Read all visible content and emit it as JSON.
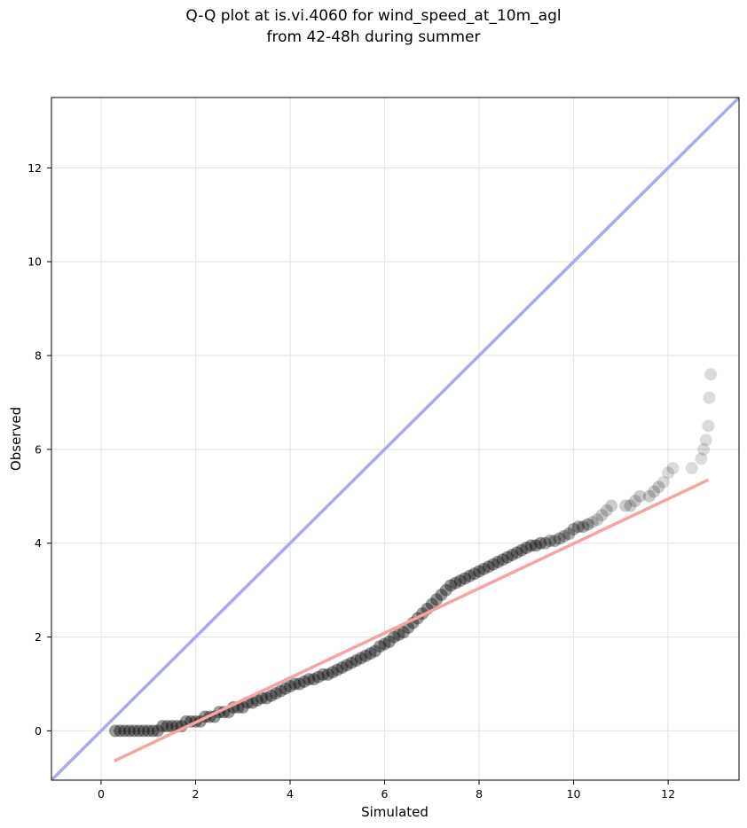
{
  "chart_data": {
    "type": "scatter",
    "title": "Q-Q plot at is.vi.4060 for wind_speed_at_10m_agl",
    "subtitle": "from 42-48h during summer",
    "xlabel": "Simulated",
    "ylabel": "Observed",
    "xlim": [
      -1.05,
      13.5
    ],
    "ylim": [
      -1.05,
      13.5
    ],
    "xticks": [
      0,
      2,
      4,
      6,
      8,
      10,
      12
    ],
    "yticks": [
      0,
      2,
      4,
      6,
      8,
      10,
      12
    ],
    "grid": true,
    "identity_line": {
      "from": [
        -1.05,
        -1.05
      ],
      "to": [
        13.5,
        13.5
      ],
      "color": "#a6abf0"
    },
    "fit_line": {
      "from": [
        0.28,
        -0.64
      ],
      "to": [
        12.85,
        5.35
      ],
      "color": "#f5a3a3"
    },
    "point_color": "#000000",
    "series": [
      {
        "points": [
          [
            0.3,
            0.0
          ],
          [
            0.4,
            0.0
          ],
          [
            0.5,
            0.0
          ],
          [
            0.6,
            0.0
          ],
          [
            0.7,
            0.0
          ],
          [
            0.8,
            0.0
          ],
          [
            0.9,
            0.0
          ],
          [
            1.0,
            0.0
          ],
          [
            1.1,
            0.0
          ],
          [
            1.2,
            0.0
          ],
          [
            1.3,
            0.1
          ],
          [
            1.4,
            0.1
          ],
          [
            1.5,
            0.1
          ],
          [
            1.6,
            0.1
          ],
          [
            1.7,
            0.1
          ],
          [
            1.8,
            0.2
          ],
          [
            1.9,
            0.2
          ],
          [
            2.0,
            0.2
          ],
          [
            2.1,
            0.2
          ],
          [
            2.2,
            0.3
          ],
          [
            2.3,
            0.3
          ],
          [
            2.4,
            0.3
          ],
          [
            2.5,
            0.4
          ],
          [
            2.6,
            0.4
          ],
          [
            2.7,
            0.4
          ],
          [
            2.8,
            0.5
          ],
          [
            2.9,
            0.5
          ],
          [
            3.0,
            0.5
          ],
          [
            3.1,
            0.6
          ],
          [
            3.2,
            0.6
          ],
          [
            3.3,
            0.65
          ],
          [
            3.4,
            0.7
          ],
          [
            3.5,
            0.7
          ],
          [
            3.6,
            0.75
          ],
          [
            3.7,
            0.8
          ],
          [
            3.8,
            0.85
          ],
          [
            3.9,
            0.9
          ],
          [
            4.0,
            0.95
          ],
          [
            4.1,
            1.0
          ],
          [
            4.2,
            1.0
          ],
          [
            4.3,
            1.05
          ],
          [
            4.4,
            1.1
          ],
          [
            4.5,
            1.1
          ],
          [
            4.6,
            1.15
          ],
          [
            4.7,
            1.2
          ],
          [
            4.8,
            1.2
          ],
          [
            4.9,
            1.25
          ],
          [
            5.0,
            1.3
          ],
          [
            5.1,
            1.35
          ],
          [
            5.2,
            1.4
          ],
          [
            5.3,
            1.45
          ],
          [
            5.4,
            1.5
          ],
          [
            5.5,
            1.55
          ],
          [
            5.6,
            1.6
          ],
          [
            5.7,
            1.65
          ],
          [
            5.8,
            1.7
          ],
          [
            5.9,
            1.8
          ],
          [
            6.0,
            1.85
          ],
          [
            6.1,
            1.9
          ],
          [
            6.2,
            2.0
          ],
          [
            6.3,
            2.05
          ],
          [
            6.4,
            2.1
          ],
          [
            6.5,
            2.2
          ],
          [
            6.6,
            2.3
          ],
          [
            6.7,
            2.4
          ],
          [
            6.8,
            2.5
          ],
          [
            6.9,
            2.6
          ],
          [
            7.0,
            2.7
          ],
          [
            7.1,
            2.8
          ],
          [
            7.2,
            2.9
          ],
          [
            7.3,
            3.0
          ],
          [
            7.4,
            3.1
          ],
          [
            7.5,
            3.15
          ],
          [
            7.6,
            3.2
          ],
          [
            7.7,
            3.25
          ],
          [
            7.8,
            3.3
          ],
          [
            7.9,
            3.35
          ],
          [
            8.0,
            3.4
          ],
          [
            8.1,
            3.45
          ],
          [
            8.2,
            3.5
          ],
          [
            8.3,
            3.55
          ],
          [
            8.4,
            3.6
          ],
          [
            8.5,
            3.65
          ],
          [
            8.6,
            3.7
          ],
          [
            8.7,
            3.75
          ],
          [
            8.8,
            3.8
          ],
          [
            8.9,
            3.85
          ],
          [
            9.0,
            3.9
          ],
          [
            9.1,
            3.95
          ],
          [
            9.2,
            3.95
          ],
          [
            9.3,
            4.0
          ],
          [
            9.4,
            4.0
          ],
          [
            9.5,
            4.05
          ],
          [
            9.6,
            4.05
          ],
          [
            9.7,
            4.1
          ],
          [
            9.8,
            4.15
          ],
          [
            9.9,
            4.2
          ],
          [
            10.0,
            4.3
          ],
          [
            10.1,
            4.35
          ],
          [
            10.2,
            4.35
          ],
          [
            10.3,
            4.4
          ],
          [
            10.4,
            4.45
          ],
          [
            10.5,
            4.5
          ],
          [
            10.6,
            4.6
          ],
          [
            10.7,
            4.7
          ],
          [
            10.8,
            4.8
          ],
          [
            11.1,
            4.8
          ],
          [
            11.2,
            4.8
          ],
          [
            11.3,
            4.9
          ],
          [
            11.4,
            5.0
          ],
          [
            11.6,
            5.0
          ],
          [
            11.7,
            5.1
          ],
          [
            11.8,
            5.2
          ],
          [
            11.9,
            5.3
          ],
          [
            12.0,
            5.5
          ],
          [
            12.1,
            5.6
          ],
          [
            12.5,
            5.6
          ],
          [
            12.7,
            5.8
          ],
          [
            12.75,
            6.0
          ],
          [
            12.8,
            6.2
          ],
          [
            12.85,
            6.5
          ],
          [
            12.87,
            7.1
          ],
          [
            12.9,
            7.6
          ]
        ]
      }
    ]
  }
}
